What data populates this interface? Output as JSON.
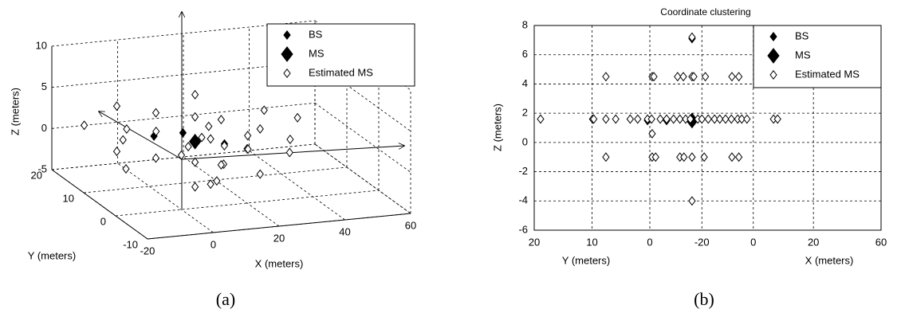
{
  "chart_data": [
    {
      "type": "scatter3d",
      "caption": "(a)",
      "xlabel": "X (meters)",
      "ylabel": "Y (meters)",
      "zlabel": "Z (meters)",
      "xlim": [
        -20,
        60
      ],
      "ylim": [
        -10,
        20
      ],
      "zlim": [
        -5,
        10
      ],
      "xticks": [
        -20,
        0,
        20,
        40,
        60
      ],
      "yticks": [
        -10,
        0,
        10,
        20
      ],
      "zticks": [
        -5,
        0,
        5,
        10
      ],
      "grid": true,
      "legend": "upper right",
      "series": [
        {
          "name": "BS",
          "color": "#000000",
          "filled": true,
          "size": 4,
          "x": [
            0,
            9,
            16
          ],
          "y": [
            8.6,
            8.8,
            3
          ],
          "z": [
            1.5,
            1.5,
            1.5
          ]
        },
        {
          "name": "MS",
          "color": "#000000",
          "filled": true,
          "size": 7,
          "x": [
            9
          ],
          "y": [
            5
          ],
          "z": [
            1.5
          ]
        },
        {
          "name": "Estimated MS",
          "color": "#000000",
          "filled": false,
          "size": 4,
          "x": [
            5,
            12,
            15,
            -10,
            -5,
            20,
            25,
            0,
            30,
            -15,
            2,
            18,
            35,
            8,
            9,
            0,
            15,
            -8,
            22,
            5,
            30,
            9,
            0,
            15,
            -8,
            22,
            5,
            -12,
            28,
            9,
            9,
            3,
            45
          ],
          "y": [
            3,
            6,
            2,
            8,
            12,
            0,
            5,
            0,
            -3,
            15,
            10,
            10,
            2,
            -5,
            5,
            8,
            3,
            12,
            -2,
            -4,
            5,
            5,
            8,
            3,
            12,
            -2,
            -4,
            5,
            8,
            5,
            5,
            -8,
            10
          ],
          "z": [
            1.6,
            1.6,
            1.6,
            1.6,
            1.6,
            1.6,
            1.6,
            1.6,
            1.6,
            1.6,
            1.6,
            1.6,
            1.6,
            1.6,
            4.5,
            4.5,
            4.5,
            4.5,
            4.5,
            4.5,
            4.5,
            -1,
            -1,
            -1,
            -1,
            -1,
            -1,
            -1,
            -1,
            7.2,
            -4,
            0.6,
            1.6
          ]
        }
      ]
    },
    {
      "type": "scatter",
      "caption": "(b)",
      "title": "Coordinate clustering",
      "xlabels": [
        "Y (meters)",
        "X (meters)"
      ],
      "ylabel": "Z (meters)",
      "xlim": [
        20,
        -40
      ],
      "ylim": [
        -6,
        8
      ],
      "xticks": [
        20,
        10,
        0,
        {
          "value": -9,
          "label": "-20"
        },
        {
          "value": -17.9,
          "label": "0"
        },
        {
          "value": -28.3,
          "label": "20"
        },
        {
          "value": -40,
          "label": "60"
        }
      ],
      "yticks": [
        -6,
        -4,
        -2,
        0,
        2,
        4,
        6,
        8
      ],
      "grid": true,
      "legend": "upper right",
      "series": [
        {
          "name": "BS",
          "color": "#000000",
          "filled": true,
          "size": 4,
          "x": [
            0.4,
            -2.9,
            -7.3
          ],
          "values": [
            1.5,
            1.5,
            7.1
          ]
        },
        {
          "name": "MS",
          "color": "#000000",
          "filled": true,
          "size": 7,
          "x": [
            -7.3
          ],
          "values": [
            1.5
          ]
        },
        {
          "name": "Estimated MS",
          "color": "#000000",
          "filled": false,
          "size": 4,
          "x": [
            18.9,
            9.9,
            9.7,
            7.6,
            5.9,
            3.4,
            2.1,
            0.4,
            -0.3,
            -1.8,
            -2.9,
            -4.1,
            -5.2,
            -6.2,
            -7.0,
            -8.3,
            -9.0,
            -10.1,
            -11.2,
            -12.1,
            -13.1,
            -14.1,
            -15.2,
            -15.9,
            -16.8,
            -21.4,
            -22.1,
            7.6,
            -0.4,
            -0.7,
            -4.8,
            -5.8,
            -7.3,
            -7.6,
            -9.6,
            -14.2,
            -15.4,
            7.6,
            -0.4,
            -1.0,
            -5.2,
            -5.9,
            -7.3,
            -9.4,
            -14.2,
            -15.4,
            -7.3,
            -7.3,
            -0.4
          ],
          "values": [
            1.6,
            1.6,
            1.6,
            1.6,
            1.6,
            1.6,
            1.6,
            1.6,
            1.6,
            1.6,
            1.6,
            1.6,
            1.6,
            1.6,
            1.6,
            1.6,
            1.6,
            1.6,
            1.6,
            1.6,
            1.6,
            1.6,
            1.6,
            1.6,
            1.6,
            1.6,
            1.6,
            4.5,
            4.5,
            4.5,
            4.5,
            4.5,
            4.5,
            4.5,
            4.5,
            4.5,
            4.5,
            -1,
            -1,
            -1,
            -1,
            -1,
            -1,
            -1,
            -1,
            -1,
            7.2,
            -4,
            0.6
          ]
        }
      ]
    }
  ]
}
